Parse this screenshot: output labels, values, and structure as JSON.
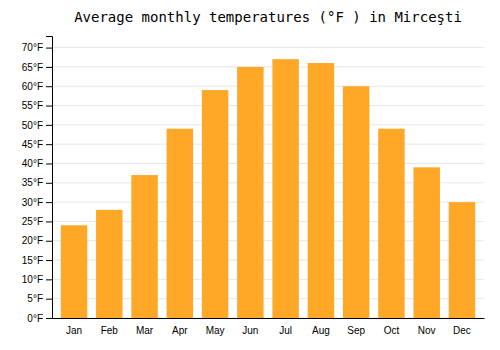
{
  "chart_data": {
    "type": "bar",
    "title": "Average monthly temperatures (°F ) in Mirceşti",
    "categories": [
      "Jan",
      "Feb",
      "Mar",
      "Apr",
      "May",
      "Jun",
      "Jul",
      "Aug",
      "Sep",
      "Oct",
      "Nov",
      "Dec"
    ],
    "values": [
      24,
      28,
      37,
      49,
      59,
      65,
      67,
      66,
      60,
      49,
      39,
      30
    ],
    "color": "#FFA726",
    "ylim": [
      0,
      73
    ],
    "yticks": [
      {
        "value": 0,
        "label": "0°F"
      },
      {
        "value": 5,
        "label": "5°F"
      },
      {
        "value": 10,
        "label": "10°F"
      },
      {
        "value": 15,
        "label": "15°F"
      },
      {
        "value": 20,
        "label": "20°F"
      },
      {
        "value": 25,
        "label": "25°F"
      },
      {
        "value": 30,
        "label": "30°F"
      },
      {
        "value": 35,
        "label": "35°F"
      },
      {
        "value": 40,
        "label": "40°F"
      },
      {
        "value": 45,
        "label": "45°F"
      },
      {
        "value": 50,
        "label": "50°F"
      },
      {
        "value": 55,
        "label": "55°F"
      },
      {
        "value": 60,
        "label": "60°F"
      },
      {
        "value": 65,
        "label": "65°F"
      },
      {
        "value": 70,
        "label": "70°F"
      }
    ],
    "grid": true
  }
}
